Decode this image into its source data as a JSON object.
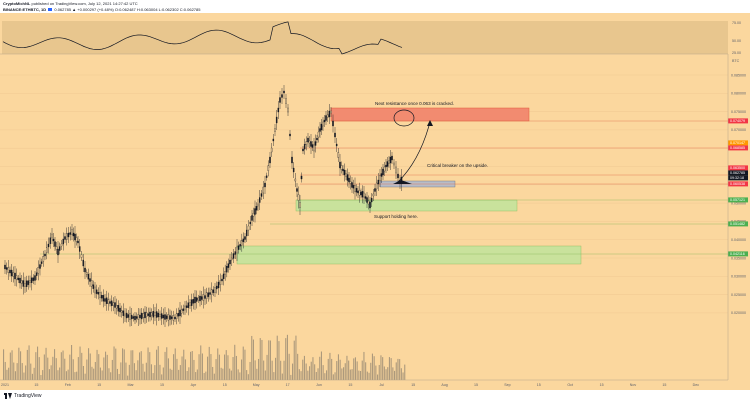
{
  "header": {
    "publisher": "CryptoMichNL",
    "published_on": "published on TradingView.com, July 12, 2021 14:27:42 UTC",
    "symbol": "BINANCE:ETHBTC, 1D",
    "last_change": "0.062785 ▲ +0.000297 (+0.48%)",
    "ohlc": "O:0.062487 H:0.063004 L:0.062302 C:0.062785"
  },
  "colors": {
    "background": "#fbd79e",
    "candle": "#131722",
    "resistance_zone": "#f28b70",
    "support_zone": "#c9e29c",
    "breaker_zone": "#b8bcc7",
    "price_tag_red": "#f23645",
    "price_tag_orange": "#ff9800",
    "price_tag_green": "#4caf50",
    "price_tag_dark": "#131722"
  },
  "rsi": {
    "levels": [
      "75.00",
      "50.00",
      "25.00"
    ]
  },
  "price_axis": {
    "currency": "BTC",
    "ticks": [
      "0.085000",
      "0.080000",
      "0.075000",
      "0.070000",
      "0.065000",
      "0.060000",
      "0.055000",
      "0.050000",
      "0.045000",
      "0.040000",
      "0.035000",
      "0.030000",
      "0.025000",
      "0.020000"
    ],
    "tags": [
      {
        "text": "0.074079",
        "color": "red"
      },
      {
        "text": "0.070147",
        "color": "orange"
      },
      {
        "text": "0.068585",
        "color": "red"
      },
      {
        "text": "0.063500",
        "color": "red"
      },
      {
        "text": "0.062785",
        "color": "dark"
      },
      {
        "text": "09:32:18",
        "color": "dark"
      },
      {
        "text": "0.060538",
        "color": "red"
      },
      {
        "text": "0.057121",
        "color": "green"
      },
      {
        "text": "0.051482",
        "color": "green"
      },
      {
        "text": "0.042116",
        "color": "green"
      }
    ]
  },
  "time_axis": {
    "ticks": [
      "2021",
      "15",
      "Feb",
      "15",
      "Mar",
      "15",
      "Apr",
      "15",
      "May",
      "17",
      "Jun",
      "15",
      "Jul",
      "15",
      "Aug",
      "15",
      "Sep",
      "15",
      "Oct",
      "15",
      "Nov",
      "15",
      "Dec"
    ]
  },
  "annotations": {
    "next_resistance": "Next resistance once 0.063 is cracked.",
    "critical_breaker": "Critical breaker on the upside.",
    "support_holding": "Support holding here."
  },
  "footer": {
    "brand": "TradingView"
  }
}
